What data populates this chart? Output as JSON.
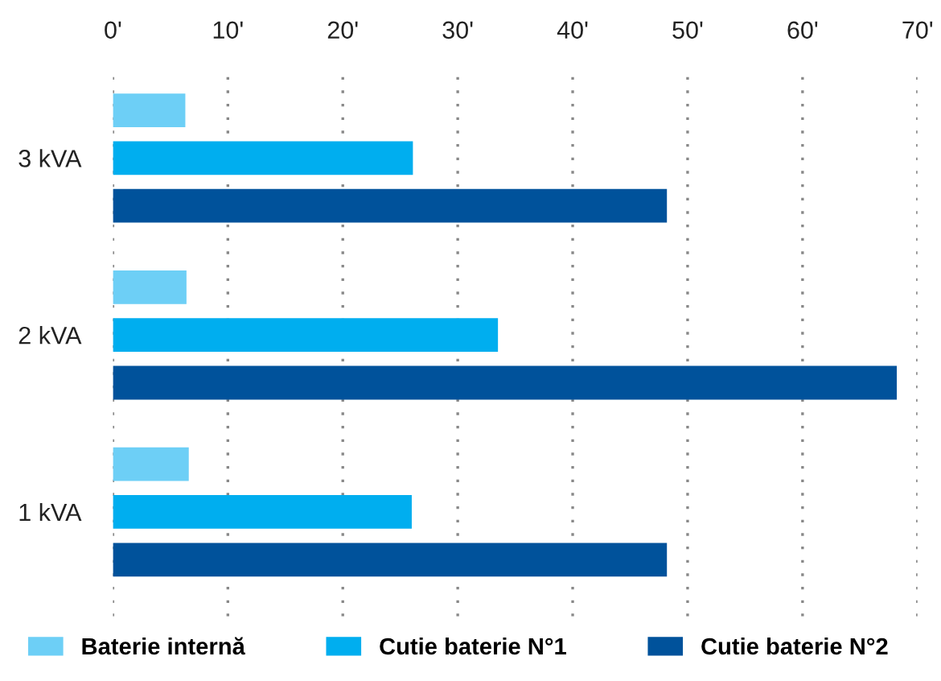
{
  "chart_data": {
    "type": "bar",
    "orientation": "horizontal",
    "categories": [
      "3 kVA",
      "2 kVA",
      "1 kVA"
    ],
    "series": [
      {
        "name": "Baterie internă",
        "color": "#6dcff6",
        "values": [
          6.3,
          6.4,
          6.6
        ]
      },
      {
        "name": "Cutie baterie N°1",
        "color": "#00aeef",
        "values": [
          26.1,
          33.5,
          26.0
        ]
      },
      {
        "name": "Cutie baterie N°2",
        "color": "#00529b",
        "values": [
          48.2,
          68.2,
          48.2
        ]
      }
    ],
    "xlim": [
      0,
      70
    ],
    "xticks": [
      {
        "value": 0,
        "label": "0'"
      },
      {
        "value": 10,
        "label": "10'"
      },
      {
        "value": 20,
        "label": "20'"
      },
      {
        "value": 30,
        "label": "30'"
      },
      {
        "value": 40,
        "label": "40'"
      },
      {
        "value": 50,
        "label": "50'"
      },
      {
        "value": 60,
        "label": "60'"
      },
      {
        "value": 70,
        "label": "70'"
      }
    ],
    "grid": "x",
    "legend": "bottom"
  }
}
